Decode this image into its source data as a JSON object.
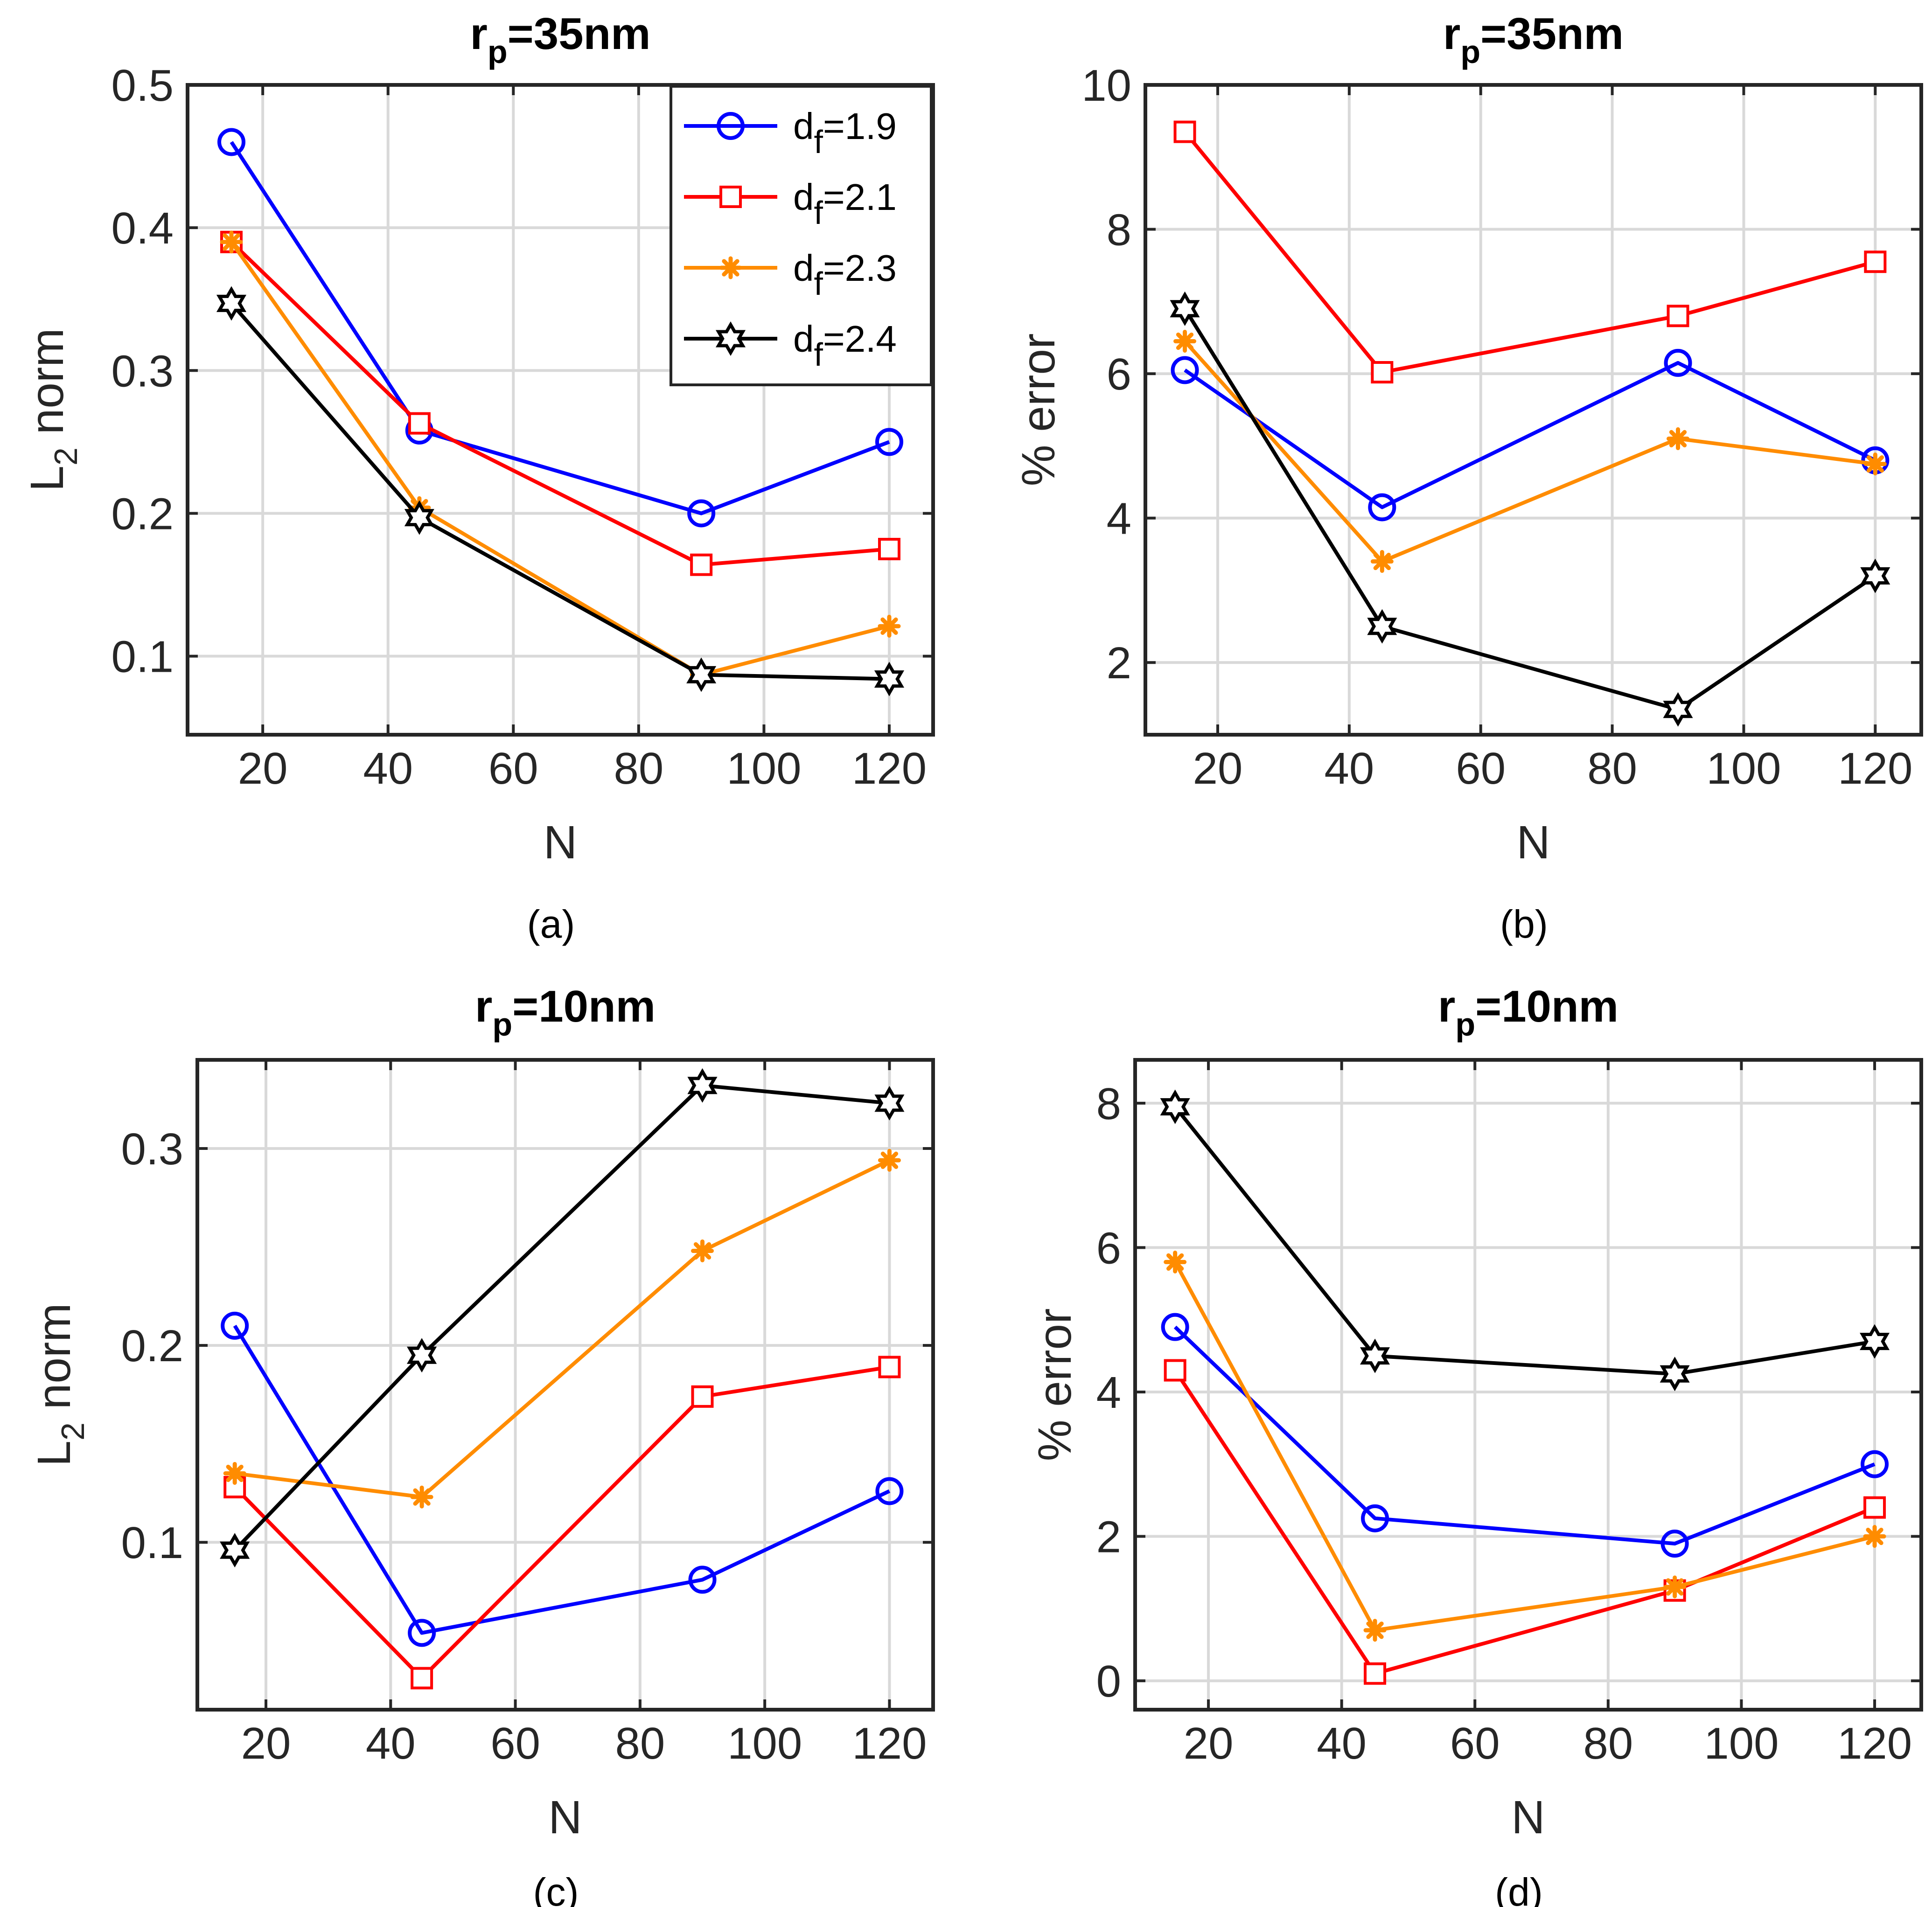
{
  "chart_data": [
    {
      "id": "a",
      "type": "line",
      "title": {
        "main": "r",
        "sub": "p",
        "rest": "=35nm"
      },
      "xlabel": "N",
      "ylabel": {
        "main": "L",
        "sub": "2",
        "rest": " norm"
      },
      "caption": "(a)",
      "xlim": [
        8,
        127
      ],
      "ylim": [
        0.045,
        0.5
      ],
      "xticks": [
        20,
        40,
        60,
        80,
        100,
        120
      ],
      "xtick_labels": [
        "20",
        "40",
        "60",
        "80",
        "100",
        "120"
      ],
      "yticks": [
        0.1,
        0.2,
        0.3,
        0.4,
        0.5
      ],
      "ytick_labels": [
        "0.1",
        "0.2",
        "0.3",
        "0.4",
        "0.5"
      ],
      "grid": true,
      "legend": true,
      "x": [
        15,
        45,
        90,
        120
      ],
      "series": [
        {
          "name": "d_f=1.9",
          "label_main": "d",
          "label_sub": "f",
          "label_rest": "=1.9",
          "color": "#0000FF",
          "marker": "circle",
          "values": [
            0.46,
            0.258,
            0.2,
            0.25
          ]
        },
        {
          "name": "d_f=2.1",
          "label_main": "d",
          "label_sub": "f",
          "label_rest": "=2.1",
          "color": "#FF0000",
          "marker": "square",
          "values": [
            0.39,
            0.263,
            0.164,
            0.175
          ]
        },
        {
          "name": "d_f=2.3",
          "label_main": "d",
          "label_sub": "f",
          "label_rest": "=2.3",
          "color": "#FF8C00",
          "marker": "asterisk",
          "values": [
            0.39,
            0.204,
            0.087,
            0.121
          ]
        },
        {
          "name": "d_f=2.4",
          "label_main": "d",
          "label_sub": "f",
          "label_rest": "=2.4",
          "color": "#000000",
          "marker": "hexagram",
          "values": [
            0.347,
            0.197,
            0.087,
            0.084
          ]
        }
      ]
    },
    {
      "id": "b",
      "type": "line",
      "title": {
        "main": "r",
        "sub": "p",
        "rest": "=35nm"
      },
      "xlabel": "N",
      "ylabel": {
        "main": "% error",
        "sub": "",
        "rest": ""
      },
      "caption": "(b)",
      "xlim": [
        9,
        127
      ],
      "ylim": [
        1,
        10
      ],
      "xticks": [
        20,
        40,
        60,
        80,
        100,
        120
      ],
      "xtick_labels": [
        "20",
        "40",
        "60",
        "80",
        "100",
        "120"
      ],
      "yticks": [
        2,
        4,
        6,
        8,
        10
      ],
      "ytick_labels": [
        "2",
        "4",
        "6",
        "8",
        "10"
      ],
      "grid": true,
      "legend": false,
      "x": [
        15,
        45,
        90,
        120
      ],
      "series": [
        {
          "name": "d_f=1.9",
          "color": "#0000FF",
          "marker": "circle",
          "values": [
            6.05,
            4.15,
            6.15,
            4.8
          ]
        },
        {
          "name": "d_f=2.1",
          "color": "#FF0000",
          "marker": "square",
          "values": [
            9.35,
            6.02,
            6.8,
            7.55
          ]
        },
        {
          "name": "d_f=2.3",
          "color": "#FF8C00",
          "marker": "asterisk",
          "values": [
            6.45,
            3.4,
            5.1,
            4.75
          ]
        },
        {
          "name": "d_f=2.4",
          "color": "#000000",
          "marker": "hexagram",
          "values": [
            6.9,
            2.5,
            1.35,
            3.2
          ]
        }
      ]
    },
    {
      "id": "c",
      "type": "line",
      "title": {
        "main": "r",
        "sub": "p",
        "rest": "=10nm"
      },
      "xlabel": "N",
      "ylabel": {
        "main": "L",
        "sub": "2",
        "rest": " norm"
      },
      "caption": "(c)",
      "xlim": [
        9,
        127
      ],
      "ylim": [
        0.015,
        0.345
      ],
      "xticks": [
        20,
        40,
        60,
        80,
        100,
        120
      ],
      "xtick_labels": [
        "20",
        "40",
        "60",
        "80",
        "100",
        "120"
      ],
      "yticks": [
        0.1,
        0.2,
        0.3
      ],
      "ytick_labels": [
        "0.1",
        "0.2",
        "0.3"
      ],
      "grid": true,
      "legend": false,
      "x": [
        15,
        45,
        90,
        120
      ],
      "series": [
        {
          "name": "d_f=1.9",
          "color": "#0000FF",
          "marker": "circle",
          "values": [
            0.21,
            0.054,
            0.081,
            0.126
          ]
        },
        {
          "name": "d_f=2.1",
          "color": "#FF0000",
          "marker": "square",
          "values": [
            0.128,
            0.031,
            0.174,
            0.189
          ]
        },
        {
          "name": "d_f=2.3",
          "color": "#FF8C00",
          "marker": "asterisk",
          "values": [
            0.135,
            0.123,
            0.248,
            0.294
          ]
        },
        {
          "name": "d_f=2.4",
          "color": "#000000",
          "marker": "hexagram",
          "values": [
            0.096,
            0.195,
            0.332,
            0.323
          ]
        }
      ]
    },
    {
      "id": "d",
      "type": "line",
      "title": {
        "main": "r",
        "sub": "p",
        "rest": "=10nm"
      },
      "xlabel": "N",
      "ylabel": {
        "main": "% error",
        "sub": "",
        "rest": ""
      },
      "caption": "(d)",
      "xlim": [
        9,
        127
      ],
      "ylim": [
        -0.4,
        8.6
      ],
      "xticks": [
        20,
        40,
        60,
        80,
        100,
        120
      ],
      "xtick_labels": [
        "20",
        "40",
        "60",
        "80",
        "100",
        "120"
      ],
      "yticks": [
        0,
        2,
        4,
        6,
        8
      ],
      "ytick_labels": [
        "0",
        "2",
        "4",
        "6",
        "8"
      ],
      "grid": true,
      "legend": false,
      "x": [
        15,
        45,
        90,
        120
      ],
      "series": [
        {
          "name": "d_f=1.9",
          "color": "#0000FF",
          "marker": "circle",
          "values": [
            4.9,
            2.25,
            1.9,
            3.0
          ]
        },
        {
          "name": "d_f=2.1",
          "color": "#FF0000",
          "marker": "square",
          "values": [
            4.3,
            0.1,
            1.25,
            2.4
          ]
        },
        {
          "name": "d_f=2.3",
          "color": "#FF8C00",
          "marker": "asterisk",
          "values": [
            5.8,
            0.7,
            1.3,
            2.0
          ]
        },
        {
          "name": "d_f=2.4",
          "color": "#000000",
          "marker": "hexagram",
          "values": [
            7.95,
            4.5,
            4.25,
            4.7
          ]
        }
      ]
    }
  ]
}
